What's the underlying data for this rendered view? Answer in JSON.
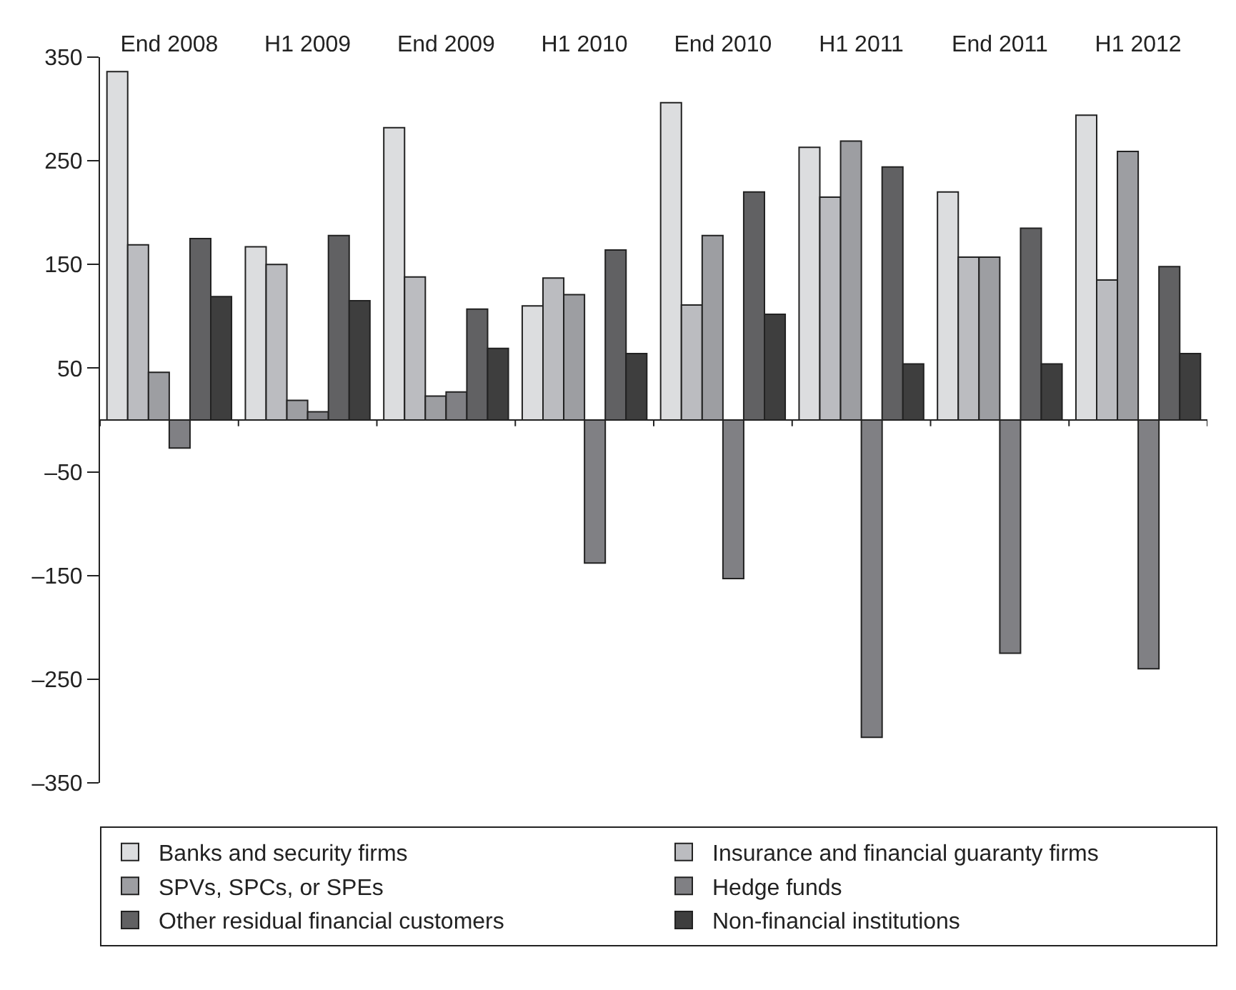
{
  "chart_data": {
    "type": "bar",
    "categories": [
      "End 2008",
      "H1 2009",
      "End 2009",
      "H1 2010",
      "End 2010",
      "H1 2011",
      "End 2011",
      "H1 2012"
    ],
    "ylim": [
      -350,
      350
    ],
    "yticks": [
      350,
      250,
      150,
      50,
      {
        "value": -50,
        "label": "–50"
      },
      {
        "value": -150,
        "label": "–150"
      },
      {
        "value": -250,
        "label": "–250"
      },
      {
        "value": -350,
        "label": "–350"
      }
    ],
    "legend": "bottom",
    "series": [
      {
        "name": "Banks and security firms",
        "color": "#dcdddf",
        "values": [
          336,
          167,
          282,
          110,
          306,
          263,
          220,
          294
        ]
      },
      {
        "name": "Insurance and financial guaranty firms",
        "color": "#bbbcc0",
        "values": [
          169,
          150,
          138,
          137,
          111,
          215,
          157,
          135
        ]
      },
      {
        "name": "SPVs, SPCs, or SPEs",
        "color": "#9d9ea2",
        "values": [
          46,
          19,
          23,
          121,
          178,
          269,
          157,
          259
        ]
      },
      {
        "name": "Hedge funds",
        "color": "#808084",
        "values": [
          -27,
          8,
          27,
          -138,
          -153,
          -306,
          -225,
          -240
        ]
      },
      {
        "name": "Other residual financial customers",
        "color": "#616163",
        "values": [
          175,
          178,
          107,
          164,
          220,
          244,
          185,
          148
        ]
      },
      {
        "name": "Non-financial institutions",
        "color": "#3e3e3e",
        "values": [
          119,
          115,
          69,
          64,
          102,
          54,
          54,
          64
        ]
      }
    ]
  }
}
